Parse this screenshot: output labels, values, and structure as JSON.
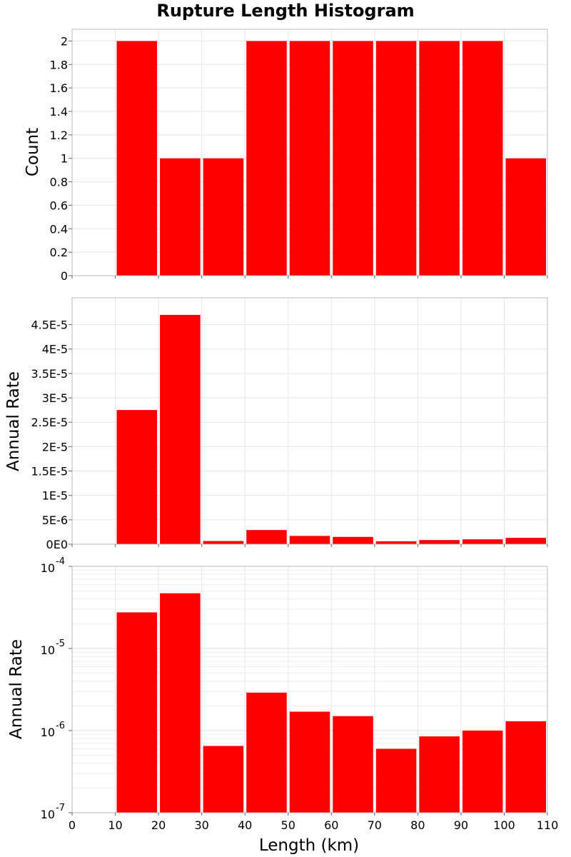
{
  "chart_data": {
    "type": "bar",
    "title": "Rupture Length Histogram",
    "xlabel": "Length (km)",
    "xlim": [
      0,
      110
    ],
    "x_ticks": [
      "0",
      "10",
      "20",
      "30",
      "40",
      "50",
      "60",
      "70",
      "80",
      "90",
      "100",
      "110"
    ],
    "bin_width": 10,
    "bin_starts": [
      10,
      20,
      30,
      40,
      50,
      60,
      70,
      80,
      90,
      100
    ],
    "bar_color": "#ff0000",
    "grid": true,
    "panels": [
      {
        "ylabel": "Count",
        "scale": "linear",
        "ylim": [
          0,
          2.1
        ],
        "y_ticks": [
          {
            "value": 0,
            "label": "0"
          },
          {
            "value": 0.2,
            "label": "0.2"
          },
          {
            "value": 0.4,
            "label": "0.4"
          },
          {
            "value": 0.6,
            "label": "0.6"
          },
          {
            "value": 0.8,
            "label": "0.8"
          },
          {
            "value": 1,
            "label": "1"
          },
          {
            "value": 1.2,
            "label": "1.2"
          },
          {
            "value": 1.4,
            "label": "1.4"
          },
          {
            "value": 1.6,
            "label": "1.6"
          },
          {
            "value": 1.8,
            "label": "1.8"
          },
          {
            "value": 2,
            "label": "2"
          }
        ],
        "values": [
          2,
          1,
          1,
          2,
          2,
          2,
          2,
          2,
          2,
          1
        ]
      },
      {
        "ylabel": "Annual Rate",
        "scale": "linear",
        "ylim": [
          0,
          5.05e-05
        ],
        "y_ticks": [
          {
            "value": 0,
            "label": "0E0"
          },
          {
            "value": 5e-06,
            "label": "5E-6"
          },
          {
            "value": 1e-05,
            "label": "1E-5"
          },
          {
            "value": 1.5e-05,
            "label": "1.5E-5"
          },
          {
            "value": 2e-05,
            "label": "2E-5"
          },
          {
            "value": 2.5e-05,
            "label": "2.5E-5"
          },
          {
            "value": 3e-05,
            "label": "3E-5"
          },
          {
            "value": 3.5e-05,
            "label": "3.5E-5"
          },
          {
            "value": 4e-05,
            "label": "4E-5"
          },
          {
            "value": 4.5e-05,
            "label": "4.5E-5"
          }
        ],
        "values": [
          2.75e-05,
          4.7e-05,
          6.5e-07,
          2.9e-06,
          1.7e-06,
          1.5e-06,
          6e-07,
          8.5e-07,
          1e-06,
          1.3e-06
        ]
      },
      {
        "ylabel": "Annual Rate",
        "scale": "log",
        "ylim": [
          1e-07,
          0.0001
        ],
        "y_ticks": [
          {
            "value": 1e-07,
            "base": "10",
            "exp": "-7"
          },
          {
            "value": 1e-06,
            "base": "10",
            "exp": "-6"
          },
          {
            "value": 1e-05,
            "base": "10",
            "exp": "-5"
          },
          {
            "value": 0.0001,
            "base": "10",
            "exp": "-4"
          }
        ],
        "values": [
          2.75e-05,
          4.7e-05,
          6.5e-07,
          2.9e-06,
          1.7e-06,
          1.5e-06,
          6e-07,
          8.5e-07,
          1e-06,
          1.3e-06
        ]
      }
    ]
  }
}
